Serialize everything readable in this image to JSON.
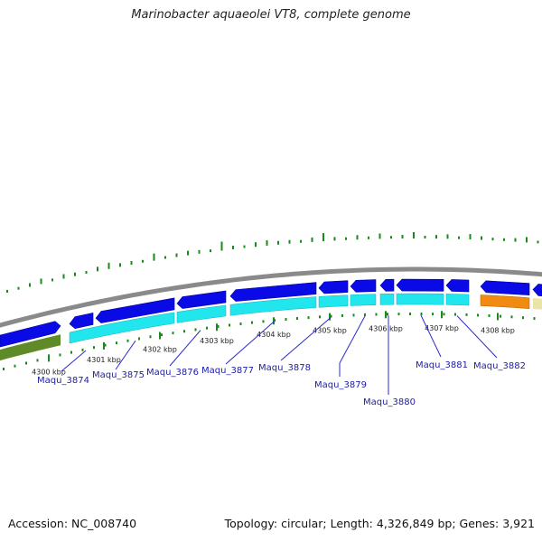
{
  "title": "Marinobacter aquaeolei VT8, complete genome",
  "footer": {
    "accession": "Accession: NC_008740",
    "stats": "Topology: circular; Length: 4,326,849 bp; Genes: 3,921"
  },
  "colors": {
    "backbone": "#8a8a8a",
    "gene_forward": "#0a0ae6",
    "cds_track": "#22e6ee",
    "gene_other": "#f08a10",
    "cds_other": "#ece4a6",
    "locus_left": "#5e8a28",
    "tick": "#1a8a1a",
    "label_text": "#1c1ca8",
    "leader_line": "#2a2ad0"
  },
  "ticks": [
    {
      "label": "4300 kbp"
    },
    {
      "label": "4301 kbp"
    },
    {
      "label": "4302 kbp"
    },
    {
      "label": "4303 kbp"
    },
    {
      "label": "4304 kbp"
    },
    {
      "label": "4305 kbp"
    },
    {
      "label": "4306 kbp"
    },
    {
      "label": "4307 kbp"
    },
    {
      "label": "4308 kbp"
    }
  ],
  "genes": [
    {
      "label": "Maqu_3874"
    },
    {
      "label": "Maqu_3875"
    },
    {
      "label": "Maqu_3876"
    },
    {
      "label": "Maqu_3877"
    },
    {
      "label": "Maqu_3878"
    },
    {
      "label": "Maqu_3879"
    },
    {
      "label": "Maqu_3880"
    },
    {
      "label": "Maqu_3881"
    },
    {
      "label": "Maqu_3882"
    }
  ]
}
